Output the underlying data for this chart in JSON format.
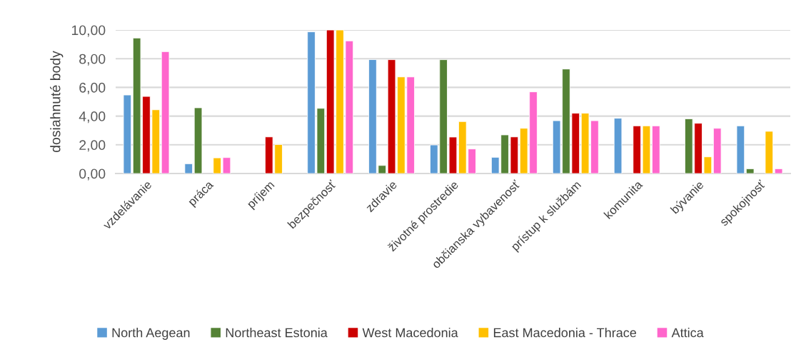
{
  "chart_data": {
    "type": "bar",
    "ylabel": "dosiahnuté body",
    "categories": [
      "vzdelávanie",
      "práca",
      "príjem",
      "bezpečnosť",
      "zdravie",
      "životné prostredie",
      "občianska vybavenosť",
      "prístup k službám",
      "komunita",
      "bývanie",
      "spokojnosť"
    ],
    "ylim": [
      0,
      10
    ],
    "yticks": [
      {
        "value": 0,
        "label": "0,00"
      },
      {
        "value": 2,
        "label": "2,00"
      },
      {
        "value": 4,
        "label": "4,00"
      },
      {
        "value": 6,
        "label": "6,00"
      },
      {
        "value": 8,
        "label": "8,00"
      },
      {
        "value": 10,
        "label": "10,00"
      }
    ],
    "grid": "y",
    "legend": "bottom",
    "series": [
      {
        "name": "North Aegean",
        "color": "#5b9bd5",
        "values": [
          5.47,
          0.68,
          null,
          9.87,
          7.94,
          1.99,
          1.13,
          3.68,
          3.85,
          null,
          3.32
        ]
      },
      {
        "name": "Northeast Estonia",
        "color": "#548235",
        "values": [
          9.44,
          4.58,
          null,
          4.54,
          0.56,
          7.93,
          2.69,
          7.28,
          null,
          3.81,
          0.33
        ]
      },
      {
        "name": "West Macedonia",
        "color": "#cc0000",
        "values": [
          5.37,
          null,
          2.55,
          10,
          7.93,
          2.54,
          2.55,
          4.2,
          3.32,
          3.5,
          null
        ]
      },
      {
        "name": "East Macedonia - Thrace",
        "color": "#ffc000",
        "values": [
          4.44,
          1.09,
          2.02,
          10,
          6.73,
          3.62,
          3.15,
          4.2,
          3.32,
          1.16,
          2.94
        ]
      },
      {
        "name": "Attica",
        "color": "#ff66cc",
        "values": [
          8.49,
          1.11,
          null,
          9.24,
          6.73,
          1.71,
          5.69,
          3.68,
          3.32,
          3.15,
          0.33
        ]
      }
    ]
  }
}
